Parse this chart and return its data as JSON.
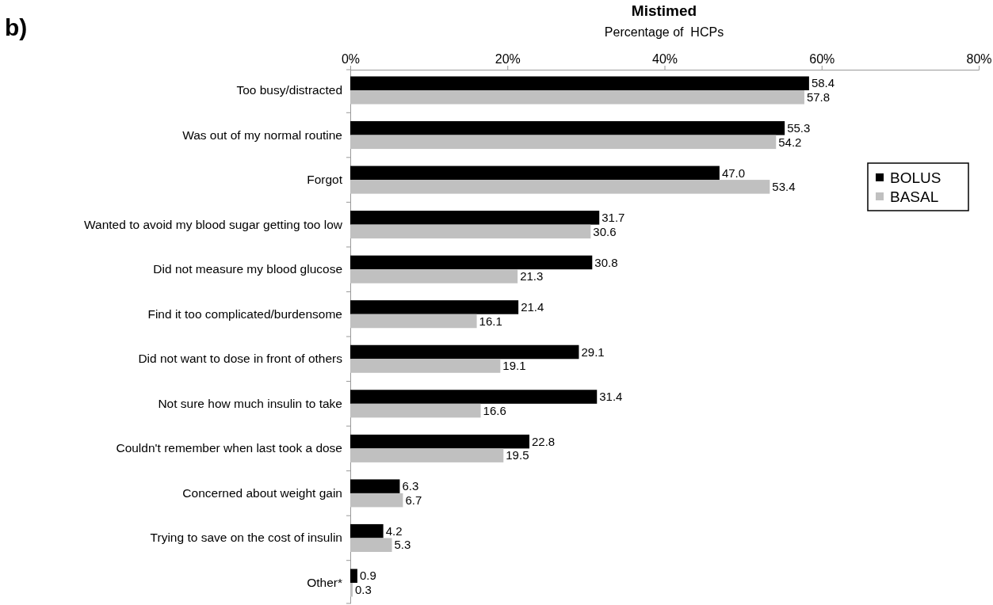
{
  "chart_data": {
    "type": "bar",
    "orientation": "horizontal",
    "title": "Mistimed",
    "xlabel": "Percentage of  HCPs",
    "annotations": [
      "b)"
    ],
    "categories": [
      "Too busy/distracted",
      "Was out of my normal routine",
      "Forgot",
      "Wanted to avoid my blood sugar getting too low",
      "Did not measure my blood glucose",
      "Find it too complicated/burdensome",
      "Did not want to dose in front of others",
      "Not sure how much insulin to take",
      "Couldn't remember when last took a dose",
      "Concerned about weight gain",
      "Trying to save on the cost of insulin",
      "Other*"
    ],
    "series": [
      {
        "name": "BOLUS",
        "color": "#000000",
        "values": [
          58.4,
          55.3,
          47.0,
          31.7,
          30.8,
          21.4,
          29.1,
          31.4,
          22.8,
          6.3,
          4.2,
          0.9
        ],
        "value_labels": [
          "58.4",
          "55.3",
          "47.0",
          "31.7",
          "30.8",
          "21.4",
          "29.1",
          "31.4",
          "22.8",
          "6.3",
          "4.2",
          "0.9"
        ]
      },
      {
        "name": "BASAL",
        "color": "#c0c0c0",
        "values": [
          57.8,
          54.2,
          53.4,
          30.6,
          21.3,
          16.1,
          19.1,
          16.6,
          19.5,
          6.7,
          5.3,
          0.3
        ],
        "value_labels": [
          "57.8",
          "54.2",
          "53.4",
          "30.6",
          "21.3",
          "16.1",
          "19.1",
          "16.6",
          "19.5",
          "6.7",
          "5.3",
          "0.3"
        ]
      }
    ],
    "xlim": [
      0,
      80
    ],
    "xticks": [
      {
        "value": 0,
        "label": "0%"
      },
      {
        "value": 20,
        "label": "20%"
      },
      {
        "value": 40,
        "label": "40%"
      },
      {
        "value": 60,
        "label": "60%"
      },
      {
        "value": 80,
        "label": "80%"
      }
    ],
    "legend": "right",
    "grid": false
  }
}
